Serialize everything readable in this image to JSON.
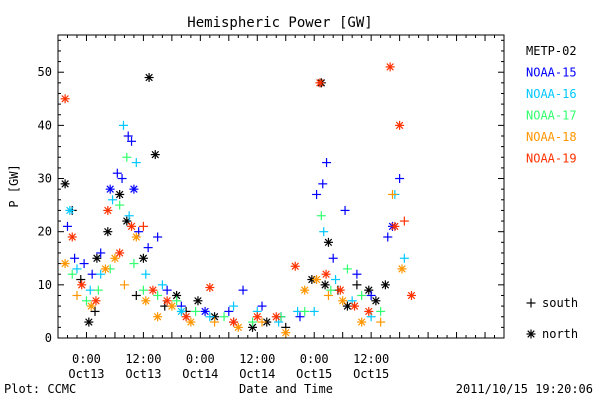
{
  "chart_data": {
    "type": "scatter",
    "title": "Hemispheric Power [GW]",
    "xlabel": "Date and Time",
    "ylabel": "P [GW]",
    "ylim": [
      0,
      57
    ],
    "yticks": [
      0,
      10,
      20,
      30,
      40,
      50
    ],
    "xlim_hours": [
      -6,
      88
    ],
    "x_unit": "hours from 2011-10-13 00:00 UT",
    "xticks": [
      {
        "hour": 0,
        "time": "0:00",
        "date": "Oct13"
      },
      {
        "hour": 12,
        "time": "12:00",
        "date": "Oct13"
      },
      {
        "hour": 24,
        "time": "0:00",
        "date": "Oct14"
      },
      {
        "hour": 36,
        "time": "12:00",
        "date": "Oct14"
      },
      {
        "hour": 48,
        "time": "0:00",
        "date": "Oct15"
      },
      {
        "hour": 60,
        "time": "12:00",
        "date": "Oct15"
      }
    ],
    "grid": false,
    "legend_position": "right",
    "symbol_legend": [
      {
        "symbol": "+",
        "label": "south"
      },
      {
        "symbol": "*",
        "label": "north"
      }
    ],
    "series": [
      {
        "name": "METP-02",
        "color": "#000000",
        "points": [
          {
            "x": -4.5,
            "y": 29,
            "h": "north"
          },
          {
            "x": -3,
            "y": 24,
            "h": "south"
          },
          {
            "x": -1.2,
            "y": 11,
            "h": "south"
          },
          {
            "x": 0.5,
            "y": 3,
            "h": "north"
          },
          {
            "x": 1.8,
            "y": 5,
            "h": "south"
          },
          {
            "x": 2.2,
            "y": 15,
            "h": "north"
          },
          {
            "x": 4.5,
            "y": 20,
            "h": "north"
          },
          {
            "x": 7,
            "y": 27,
            "h": "north"
          },
          {
            "x": 8.5,
            "y": 22,
            "h": "north"
          },
          {
            "x": 10.5,
            "y": 8,
            "h": "south"
          },
          {
            "x": 12,
            "y": 15,
            "h": "north"
          },
          {
            "x": 13.2,
            "y": 49,
            "h": "north"
          },
          {
            "x": 14.5,
            "y": 34.5,
            "h": "north"
          },
          {
            "x": 16.5,
            "y": 6,
            "h": "south"
          },
          {
            "x": 19,
            "y": 8,
            "h": "north"
          },
          {
            "x": 21,
            "y": 5,
            "h": "south"
          },
          {
            "x": 23.5,
            "y": 7,
            "h": "north"
          },
          {
            "x": 27,
            "y": 4,
            "h": "north"
          },
          {
            "x": 31,
            "y": 3,
            "h": "south"
          },
          {
            "x": 35,
            "y": 2,
            "h": "north"
          },
          {
            "x": 38,
            "y": 3,
            "h": "north"
          },
          {
            "x": 42,
            "y": 2,
            "h": "south"
          },
          {
            "x": 47.5,
            "y": 11,
            "h": "north"
          },
          {
            "x": 49.5,
            "y": 48,
            "h": "north"
          },
          {
            "x": 50.3,
            "y": 10,
            "h": "north"
          },
          {
            "x": 51,
            "y": 18,
            "h": "north"
          },
          {
            "x": 53,
            "y": 9,
            "h": "south"
          },
          {
            "x": 55,
            "y": 6,
            "h": "north"
          },
          {
            "x": 57,
            "y": 10,
            "h": "south"
          },
          {
            "x": 59.5,
            "y": 9,
            "h": "north"
          },
          {
            "x": 61,
            "y": 7,
            "h": "north"
          },
          {
            "x": 63,
            "y": 10,
            "h": "north"
          }
        ]
      },
      {
        "name": "NOAA-15",
        "color": "#0000ff",
        "points": [
          {
            "x": -4,
            "y": 21,
            "h": "south"
          },
          {
            "x": -2.5,
            "y": 15,
            "h": "south"
          },
          {
            "x": -0.5,
            "y": 14,
            "h": "south"
          },
          {
            "x": 1.2,
            "y": 12,
            "h": "south"
          },
          {
            "x": 3,
            "y": 16,
            "h": "south"
          },
          {
            "x": 5,
            "y": 28,
            "h": "north"
          },
          {
            "x": 6.5,
            "y": 31,
            "h": "south"
          },
          {
            "x": 7.5,
            "y": 30,
            "h": "south"
          },
          {
            "x": 8.8,
            "y": 38,
            "h": "south"
          },
          {
            "x": 9.5,
            "y": 37,
            "h": "south"
          },
          {
            "x": 10,
            "y": 28,
            "h": "north"
          },
          {
            "x": 11,
            "y": 20,
            "h": "south"
          },
          {
            "x": 13,
            "y": 17,
            "h": "south"
          },
          {
            "x": 15,
            "y": 19,
            "h": "south"
          },
          {
            "x": 17,
            "y": 9,
            "h": "south"
          },
          {
            "x": 20,
            "y": 6,
            "h": "south"
          },
          {
            "x": 25,
            "y": 5,
            "h": "north"
          },
          {
            "x": 30,
            "y": 5,
            "h": "south"
          },
          {
            "x": 33,
            "y": 9,
            "h": "south"
          },
          {
            "x": 37,
            "y": 6,
            "h": "south"
          },
          {
            "x": 41,
            "y": 4,
            "h": "south"
          },
          {
            "x": 45,
            "y": 4,
            "h": "south"
          },
          {
            "x": 48.5,
            "y": 27,
            "h": "south"
          },
          {
            "x": 49.8,
            "y": 29,
            "h": "south"
          },
          {
            "x": 50.6,
            "y": 33,
            "h": "south"
          },
          {
            "x": 52,
            "y": 15,
            "h": "south"
          },
          {
            "x": 54.5,
            "y": 24,
            "h": "south"
          },
          {
            "x": 57,
            "y": 12,
            "h": "south"
          },
          {
            "x": 60,
            "y": 8,
            "h": "south"
          },
          {
            "x": 63.5,
            "y": 19,
            "h": "south"
          },
          {
            "x": 64.5,
            "y": 21,
            "h": "north"
          },
          {
            "x": 66,
            "y": 30,
            "h": "south"
          }
        ]
      },
      {
        "name": "NOAA-16",
        "color": "#00c8ff",
        "points": [
          {
            "x": -3.5,
            "y": 24,
            "h": "north"
          },
          {
            "x": -2,
            "y": 13,
            "h": "south"
          },
          {
            "x": 0.8,
            "y": 9,
            "h": "south"
          },
          {
            "x": 3,
            "y": 12,
            "h": "south"
          },
          {
            "x": 5.5,
            "y": 26,
            "h": "south"
          },
          {
            "x": 7.8,
            "y": 40,
            "h": "south"
          },
          {
            "x": 9,
            "y": 23,
            "h": "south"
          },
          {
            "x": 10.5,
            "y": 33,
            "h": "south"
          },
          {
            "x": 12.5,
            "y": 12,
            "h": "south"
          },
          {
            "x": 16,
            "y": 10,
            "h": "south"
          },
          {
            "x": 20,
            "y": 5,
            "h": "north"
          },
          {
            "x": 26,
            "y": 4,
            "h": "south"
          },
          {
            "x": 31,
            "y": 6,
            "h": "south"
          },
          {
            "x": 36,
            "y": 5,
            "h": "south"
          },
          {
            "x": 40.5,
            "y": 3,
            "h": "south"
          },
          {
            "x": 44.5,
            "y": 5,
            "h": "south"
          },
          {
            "x": 48,
            "y": 5,
            "h": "south"
          },
          {
            "x": 50,
            "y": 20,
            "h": "south"
          },
          {
            "x": 52.5,
            "y": 11,
            "h": "south"
          },
          {
            "x": 56,
            "y": 7,
            "h": "south"
          },
          {
            "x": 60,
            "y": 4,
            "h": "south"
          },
          {
            "x": 65,
            "y": 27,
            "h": "south"
          },
          {
            "x": 67,
            "y": 15,
            "h": "south"
          }
        ]
      },
      {
        "name": "NOAA-17",
        "color": "#32ff6e",
        "points": [
          {
            "x": -3,
            "y": 12,
            "h": "south"
          },
          {
            "x": 0,
            "y": 7,
            "h": "south"
          },
          {
            "x": 2.5,
            "y": 9,
            "h": "south"
          },
          {
            "x": 5,
            "y": 13,
            "h": "south"
          },
          {
            "x": 7,
            "y": 25,
            "h": "south"
          },
          {
            "x": 8.5,
            "y": 34,
            "h": "south"
          },
          {
            "x": 10,
            "y": 14,
            "h": "south"
          },
          {
            "x": 12,
            "y": 9,
            "h": "south"
          },
          {
            "x": 15,
            "y": 8,
            "h": "south"
          },
          {
            "x": 19,
            "y": 7,
            "h": "south"
          },
          {
            "x": 23,
            "y": 5,
            "h": "south"
          },
          {
            "x": 29,
            "y": 4,
            "h": "south"
          },
          {
            "x": 35,
            "y": 3,
            "h": "south"
          },
          {
            "x": 41,
            "y": 4,
            "h": "south"
          },
          {
            "x": 46,
            "y": 5,
            "h": "south"
          },
          {
            "x": 49.5,
            "y": 23,
            "h": "south"
          },
          {
            "x": 51.5,
            "y": 9,
            "h": "south"
          },
          {
            "x": 55,
            "y": 13,
            "h": "south"
          },
          {
            "x": 58,
            "y": 8,
            "h": "south"
          },
          {
            "x": 62,
            "y": 5,
            "h": "south"
          }
        ]
      },
      {
        "name": "NOAA-18",
        "color": "#ff9600",
        "points": [
          {
            "x": -4.5,
            "y": 14,
            "h": "north"
          },
          {
            "x": -2,
            "y": 8,
            "h": "south"
          },
          {
            "x": 1,
            "y": 6,
            "h": "north"
          },
          {
            "x": 4,
            "y": 13,
            "h": "north"
          },
          {
            "x": 6,
            "y": 15,
            "h": "north"
          },
          {
            "x": 8,
            "y": 10,
            "h": "south"
          },
          {
            "x": 10.5,
            "y": 19,
            "h": "north"
          },
          {
            "x": 12.5,
            "y": 7,
            "h": "north"
          },
          {
            "x": 15,
            "y": 4,
            "h": "north"
          },
          {
            "x": 18,
            "y": 6,
            "h": "north"
          },
          {
            "x": 22,
            "y": 3,
            "h": "north"
          },
          {
            "x": 27,
            "y": 3,
            "h": "south"
          },
          {
            "x": 32,
            "y": 2,
            "h": "north"
          },
          {
            "x": 37,
            "y": 3,
            "h": "south"
          },
          {
            "x": 42,
            "y": 1,
            "h": "north"
          },
          {
            "x": 46,
            "y": 9,
            "h": "north"
          },
          {
            "x": 48.5,
            "y": 11,
            "h": "north"
          },
          {
            "x": 51,
            "y": 8,
            "h": "south"
          },
          {
            "x": 54,
            "y": 7,
            "h": "north"
          },
          {
            "x": 58,
            "y": 3,
            "h": "north"
          },
          {
            "x": 62,
            "y": 3,
            "h": "south"
          },
          {
            "x": 64.5,
            "y": 27,
            "h": "south"
          },
          {
            "x": 66.5,
            "y": 13,
            "h": "north"
          }
        ]
      },
      {
        "name": "NOAA-19",
        "color": "#ff3200",
        "points": [
          {
            "x": -4.5,
            "y": 45,
            "h": "north"
          },
          {
            "x": -3,
            "y": 19,
            "h": "north"
          },
          {
            "x": -1,
            "y": 10,
            "h": "north"
          },
          {
            "x": 2,
            "y": 7,
            "h": "north"
          },
          {
            "x": 4.5,
            "y": 24,
            "h": "north"
          },
          {
            "x": 7,
            "y": 16,
            "h": "north"
          },
          {
            "x": 9.5,
            "y": 21,
            "h": "north"
          },
          {
            "x": 12,
            "y": 21,
            "h": "south"
          },
          {
            "x": 14,
            "y": 9,
            "h": "north"
          },
          {
            "x": 17,
            "y": 7,
            "h": "north"
          },
          {
            "x": 21,
            "y": 4,
            "h": "north"
          },
          {
            "x": 26,
            "y": 9.5,
            "h": "north"
          },
          {
            "x": 31,
            "y": 3,
            "h": "north"
          },
          {
            "x": 36,
            "y": 4,
            "h": "north"
          },
          {
            "x": 40,
            "y": 4,
            "h": "north"
          },
          {
            "x": 44,
            "y": 13.5,
            "h": "north"
          },
          {
            "x": 49.2,
            "y": 48,
            "h": "north"
          },
          {
            "x": 50.5,
            "y": 12,
            "h": "north"
          },
          {
            "x": 53.5,
            "y": 9,
            "h": "north"
          },
          {
            "x": 56.5,
            "y": 6,
            "h": "north"
          },
          {
            "x": 59.5,
            "y": 5,
            "h": "north"
          },
          {
            "x": 64,
            "y": 51,
            "h": "north"
          },
          {
            "x": 65,
            "y": 21,
            "h": "north"
          },
          {
            "x": 66,
            "y": 40,
            "h": "north"
          },
          {
            "x": 67,
            "y": 22,
            "h": "south"
          },
          {
            "x": 68.5,
            "y": 8,
            "h": "north"
          }
        ]
      }
    ]
  },
  "footer": {
    "plot_credit": "Plot: CCMC",
    "timestamp": "2011/10/15 19:20:06"
  }
}
